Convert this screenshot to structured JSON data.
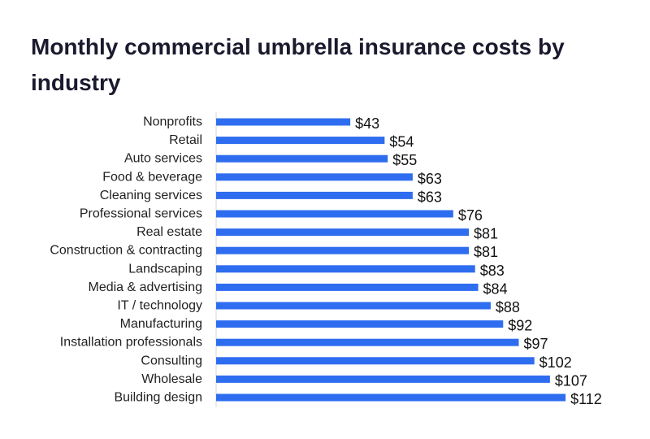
{
  "chart_data": {
    "type": "bar",
    "orientation": "horizontal",
    "title": "Monthly commercial umbrella insurance costs by industry",
    "xlabel": "",
    "ylabel": "",
    "value_prefix": "$",
    "grid": false,
    "legend": "none",
    "bar_color": "#2f6df0",
    "categories": [
      "Nonprofits",
      "Retail",
      "Auto services",
      "Food & beverage",
      "Cleaning services",
      "Professional services",
      "Real estate",
      "Construction & contracting",
      "Landscaping",
      "Media & advertising",
      "IT / technology",
      "Manufacturing",
      "Installation professionals",
      "Consulting",
      "Wholesale",
      "Building design"
    ],
    "values": [
      43,
      54,
      55,
      63,
      63,
      76,
      81,
      81,
      83,
      84,
      88,
      92,
      97,
      102,
      107,
      112
    ],
    "value_labels": [
      "$43",
      "$54",
      "$55",
      "$63",
      "$63",
      "$76",
      "$81",
      "$81",
      "$83",
      "$84",
      "$88",
      "$92",
      "$97",
      "$102",
      "$107",
      "$112"
    ]
  }
}
